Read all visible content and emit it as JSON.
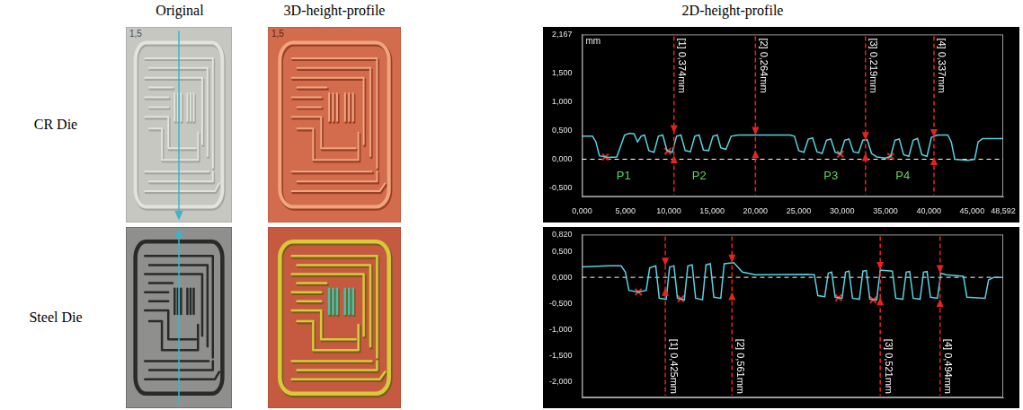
{
  "columns": [
    "Original",
    "3D-height-profile",
    "2D-height-profile"
  ],
  "rows": [
    "CR Die",
    "Steel Die"
  ],
  "marking": "1,5",
  "chart_data": [
    {
      "type": "line",
      "x": [
        0,
        1.2,
        1.6,
        2.0,
        3.0,
        4.0,
        4.5,
        4.9,
        5.5,
        6.0,
        6.4,
        6.8,
        7.2,
        7.7,
        8.3,
        8.8,
        9.3,
        9.8,
        10.4,
        10.9,
        11.4,
        11.9,
        12.5,
        13.0,
        13.5,
        14.0,
        14.6,
        15.1,
        15.6,
        16.0,
        16.6,
        17.2,
        18.0,
        24.0,
        24.5,
        25.0,
        25.6,
        26.1,
        26.6,
        27.1,
        27.7,
        28.2,
        28.7,
        29.2,
        29.8,
        30.3,
        30.8,
        31.3,
        31.9,
        32.4,
        32.9,
        33.4,
        34.0,
        35.0,
        35.6,
        36.1,
        36.6,
        37.1,
        37.7,
        38.2,
        38.7,
        39.2,
        39.8,
        40.3,
        41.0,
        42.2,
        42.6,
        43.0,
        44.5,
        45.3,
        45.7,
        46.2,
        48.592
      ],
      "values": [
        0.4,
        0.4,
        0.3,
        0.06,
        0.03,
        0.04,
        0.25,
        0.42,
        0.45,
        0.44,
        0.3,
        0.4,
        0.42,
        0.15,
        0.12,
        0.4,
        0.42,
        0.15,
        0.12,
        0.4,
        0.42,
        0.15,
        0.13,
        0.4,
        0.42,
        0.16,
        0.15,
        0.4,
        0.42,
        0.2,
        0.17,
        0.4,
        0.42,
        0.42,
        0.4,
        0.15,
        0.12,
        0.35,
        0.37,
        0.13,
        0.1,
        0.33,
        0.35,
        0.12,
        0.09,
        0.33,
        0.35,
        0.13,
        0.11,
        0.33,
        0.34,
        0.1,
        0.04,
        0.02,
        0.05,
        0.33,
        0.35,
        0.08,
        0.05,
        0.33,
        0.36,
        0.08,
        0.05,
        0.38,
        0.42,
        0.42,
        0.3,
        0.0,
        -0.02,
        0.0,
        0.3,
        0.36,
        0.36
      ],
      "color": "#5ad2e0",
      "xlim": [
        0,
        48.592
      ],
      "xticks": [
        {
          "value": 0,
          "label": "0,000"
        },
        {
          "value": 5,
          "label": "5,000"
        },
        {
          "value": 10,
          "label": "10,000"
        },
        {
          "value": 15,
          "label": "15,000"
        },
        {
          "value": 20,
          "label": "20,000"
        },
        {
          "value": 25,
          "label": "25,000"
        },
        {
          "value": 30,
          "label": "30,000"
        },
        {
          "value": 35,
          "label": "35,000"
        },
        {
          "value": 40,
          "label": "40,000"
        },
        {
          "value": 45,
          "label": "45,000"
        },
        {
          "value": 48.592,
          "label": "48,592"
        }
      ],
      "ylim": [
        -0.65,
        2.167
      ],
      "yticks": [
        {
          "value": 2.167,
          "label": "2,167"
        },
        {
          "value": 1.5,
          "label": "1,500"
        },
        {
          "value": 1,
          "label": "1,000"
        },
        {
          "value": 0.5,
          "label": "0,500"
        },
        {
          "value": 0,
          "label": "0,000"
        },
        {
          "value": -0.5,
          "label": "-0,500"
        }
      ],
      "ylabel": "mm",
      "grid": false,
      "reference_line": 0,
      "annotations": [
        {
          "text": "[1] 0,374mm",
          "x": 10.6,
          "y1": 0.45,
          "y2": 0.07
        },
        {
          "text": "[2] 0,264mm",
          "x": 20.0,
          "y1": 0.42,
          "y2": 0.16
        },
        {
          "text": "[3] 0,219mm",
          "x": 32.7,
          "y1": 0.33,
          "y2": 0.11
        },
        {
          "text": "[4] 0,337mm",
          "x": 40.6,
          "y1": 0.38,
          "y2": 0.04
        }
      ],
      "point_labels": [
        {
          "text": "P1",
          "x": 4.8,
          "y": -0.3
        },
        {
          "text": "P2",
          "x": 13.5,
          "y": -0.3
        },
        {
          "text": "P3",
          "x": 28.7,
          "y": -0.3
        },
        {
          "text": "P4",
          "x": 37.0,
          "y": -0.3
        }
      ],
      "marks": {
        "x": [
          2.7,
          9.9,
          29.8,
          35.6
        ],
        "y": [
          0.04,
          0.14,
          0.09,
          0.05
        ]
      }
    },
    {
      "type": "line",
      "x": [
        0,
        3.0,
        4.5,
        5.0,
        5.4,
        6.5,
        7.4,
        7.8,
        8.5,
        8.9,
        9.7,
        10.1,
        10.6,
        11.0,
        11.8,
        12.2,
        12.7,
        13.1,
        13.9,
        14.3,
        14.8,
        15.2,
        16.0,
        16.4,
        17.5,
        18.5,
        20.0,
        26.0,
        26.8,
        27.2,
        28.0,
        28.4,
        28.8,
        29.2,
        30.0,
        30.4,
        30.8,
        31.2,
        32.0,
        32.4,
        32.8,
        33.2,
        34.0,
        34.4,
        35.8,
        36.2,
        37.0,
        37.4,
        37.8,
        38.2,
        39.0,
        39.4,
        39.8,
        40.2,
        41.0,
        41.4,
        42.0,
        44.0,
        44.4,
        46.5,
        46.9,
        47.5,
        48.592
      ],
      "values": [
        0.2,
        0.22,
        0.22,
        0.1,
        -0.25,
        -0.28,
        -0.25,
        0.18,
        0.22,
        -0.4,
        -0.42,
        0.2,
        0.22,
        -0.4,
        -0.43,
        0.22,
        0.24,
        -0.4,
        -0.43,
        0.24,
        0.26,
        -0.38,
        -0.4,
        0.26,
        0.28,
        0.1,
        0.05,
        0.06,
        0.05,
        -0.35,
        -0.37,
        0.08,
        0.1,
        -0.38,
        -0.4,
        0.1,
        0.12,
        -0.4,
        -0.42,
        0.12,
        0.13,
        -0.42,
        -0.43,
        0.14,
        0.12,
        -0.4,
        -0.42,
        0.1,
        0.11,
        -0.4,
        -0.42,
        0.1,
        0.11,
        -0.38,
        -0.4,
        0.08,
        0.05,
        0.02,
        -0.38,
        -0.4,
        -0.05,
        0.0,
        0.0
      ],
      "color": "#5ad2e0",
      "xlim": [
        0,
        48.592
      ],
      "ylim": [
        -2.3,
        0.82
      ],
      "yticks": [
        {
          "value": 0.82,
          "label": "0,820"
        },
        {
          "value": 0.5,
          "label": "0,500"
        },
        {
          "value": 0,
          "label": "0,000"
        },
        {
          "value": -0.5,
          "label": "-0,500"
        },
        {
          "value": -1,
          "label": "-1,000"
        },
        {
          "value": -1.5,
          "label": "-1,500"
        },
        {
          "value": -2,
          "label": "-2,000"
        }
      ],
      "tick_labels": "y",
      "grid": false,
      "reference_line": 0,
      "annotations": [
        {
          "text": "[1] 0,425mm",
          "x": 9.6,
          "y1": 0.22,
          "y2": -0.2
        },
        {
          "text": "[2] 0,561mm",
          "x": 17.3,
          "y1": 0.28,
          "y2": -0.28
        },
        {
          "text": "[3] 0,521mm",
          "x": 34.4,
          "y1": 0.14,
          "y2": -0.38
        },
        {
          "text": "[4] 0,494mm",
          "x": 41.3,
          "y1": 0.08,
          "y2": -0.41
        }
      ],
      "marks": {
        "x": [
          6.5,
          11.4,
          29.6,
          33.6
        ],
        "y": [
          -0.28,
          -0.41,
          -0.39,
          -0.43
        ]
      }
    }
  ]
}
